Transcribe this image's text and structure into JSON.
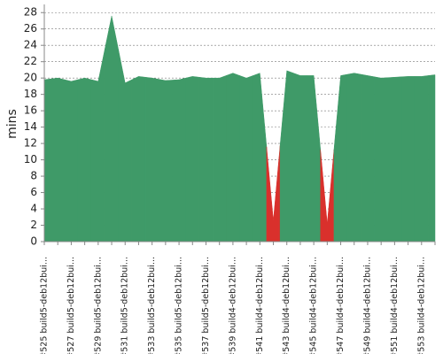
{
  "chart_data": {
    "type": "area",
    "y_label": "mins",
    "categories": [
      "#525 build5-deb12bui...",
      null,
      "#527 build5-deb12bui...",
      null,
      "#529 build5-deb12bui...",
      null,
      "#531 build5-deb12bui...",
      null,
      "#533 build5-deb12bui...",
      null,
      "#535 build5-deb12bui...",
      null,
      "#537 build5-deb12bui...",
      null,
      "#539 build4-deb12bui...",
      null,
      "#541 build4-deb12bui...",
      null,
      "#543 build4-deb12bui...",
      null,
      "#545 build4-deb12bui...",
      null,
      "#547 build4-deb12bui...",
      null,
      "#549 build4-deb12bui...",
      null,
      "#551 build4-deb12bui...",
      null,
      "#553 build4-deb12bui...",
      null
    ],
    "values": [
      19.8,
      20.0,
      19.6,
      20.0,
      19.6,
      27.6,
      19.4,
      20.2,
      20.0,
      19.7,
      19.8,
      20.2,
      20.0,
      20.0,
      20.6,
      20.0,
      20.6,
      2.6,
      20.9,
      20.3,
      20.3,
      2.2,
      20.3,
      20.6,
      20.3,
      20.0,
      20.1,
      20.2,
      20.2,
      20.4
    ],
    "point_colors": [
      "#3f9a68",
      "#3f9a68",
      "#3f9a68",
      "#3f9a68",
      "#3f9a68",
      "#3f9a68",
      "#3f9a68",
      "#3f9a68",
      "#3f9a68",
      "#3f9a68",
      "#3f9a68",
      "#3f9a68",
      "#3f9a68",
      "#3f9a68",
      "#3f9a68",
      "#3f9a68",
      "#3f9a68",
      "#d9302c",
      "#3f9a68",
      "#3f9a68",
      "#3f9a68",
      "#d9302c",
      "#3f9a68",
      "#3f9a68",
      "#3f9a68",
      "#3f9a68",
      "#3f9a68",
      "#3f9a68",
      "#3f9a68",
      "#3f9a68"
    ],
    "ylim": [
      0,
      29
    ],
    "yticks": [
      0,
      2,
      4,
      6,
      8,
      10,
      12,
      14,
      16,
      18,
      20,
      22,
      24,
      26,
      28
    ],
    "grid": true
  }
}
